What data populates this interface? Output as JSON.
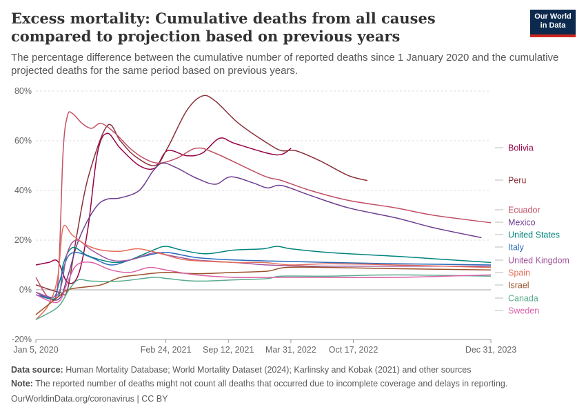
{
  "header": {
    "title": "Excess mortality: Cumulative deaths from all causes compared to projection based on previous years",
    "subtitle": "The percentage difference between the cumulative number of reported deaths since 1 January 2020 and the cumulative projected deaths for the same period based on previous years.",
    "logo_line1": "Our World",
    "logo_line2": "in Data"
  },
  "footer": {
    "source_label": "Data source:",
    "source_text": "Human Mortality Database; World Mortality Dataset (2024); Karlinsky and Kobak (2021) and other sources",
    "note_label": "Note:",
    "note_text": "The reported number of deaths might not count all deaths that occurred due to incomplete coverage and delays in reporting.",
    "url_license": "OurWorldinData.org/coronavirus | CC BY"
  },
  "chart_data": {
    "type": "line",
    "ylim": [
      -20,
      80
    ],
    "xlim": [
      "2020-01-05",
      "2023-12-31"
    ],
    "y_ticks": [
      {
        "value": -20,
        "label": "-20%"
      },
      {
        "value": 0,
        "label": "0%"
      },
      {
        "value": 20,
        "label": "20%"
      },
      {
        "value": 40,
        "label": "40%"
      },
      {
        "value": 60,
        "label": "60%"
      },
      {
        "value": 80,
        "label": "80%"
      }
    ],
    "x_ticks": [
      {
        "date": "2020-01-05",
        "label": "Jan 5, 2020"
      },
      {
        "date": "2021-02-24",
        "label": "Feb 24, 2021"
      },
      {
        "date": "2021-09-12",
        "label": "Sep 12, 2021"
      },
      {
        "date": "2022-03-31",
        "label": "Mar 31, 2022"
      },
      {
        "date": "2022-10-17",
        "label": "Oct 17, 2022"
      },
      {
        "date": "2023-12-31",
        "label": "Dec 31, 2023"
      }
    ],
    "grid": "horizontal dashed",
    "legend": "right, labels at line ends",
    "series": [
      {
        "name": "Bolivia",
        "color": "#970046",
        "points": [
          [
            "2020-01-05",
            10
          ],
          [
            "2020-02-15",
            11
          ],
          [
            "2020-03-15",
            11.5
          ],
          [
            "2020-04-15",
            3
          ],
          [
            "2020-05-20",
            6
          ],
          [
            "2020-06-20",
            25
          ],
          [
            "2020-07-20",
            55
          ],
          [
            "2020-08-20",
            63
          ],
          [
            "2020-10-01",
            57
          ],
          [
            "2020-12-01",
            50
          ],
          [
            "2021-01-20",
            49
          ],
          [
            "2021-03-01",
            56
          ],
          [
            "2021-05-01",
            54
          ],
          [
            "2021-06-20",
            55
          ],
          [
            "2021-08-15",
            61
          ],
          [
            "2021-10-01",
            59
          ],
          [
            "2022-01-15",
            55
          ],
          [
            "2022-03-01",
            54.5
          ],
          [
            "2022-04-01",
            57
          ]
        ]
      },
      {
        "name": "Peru",
        "color": "#883039",
        "points": [
          [
            "2020-01-05",
            2
          ],
          [
            "2020-03-20",
            -1
          ],
          [
            "2020-04-15",
            0
          ],
          [
            "2020-05-15",
            22
          ],
          [
            "2020-06-20",
            45
          ],
          [
            "2020-08-20",
            66
          ],
          [
            "2020-10-01",
            60
          ],
          [
            "2020-11-15",
            54
          ],
          [
            "2021-01-20",
            50
          ],
          [
            "2021-03-01",
            57
          ],
          [
            "2021-05-01",
            72
          ],
          [
            "2021-06-20",
            78
          ],
          [
            "2021-08-01",
            76
          ],
          [
            "2021-10-15",
            67
          ],
          [
            "2022-01-15",
            59
          ],
          [
            "2022-03-01",
            56
          ],
          [
            "2022-04-15",
            56
          ],
          [
            "2022-07-01",
            52
          ],
          [
            "2022-10-01",
            46
          ],
          [
            "2022-12-01",
            44
          ]
        ]
      },
      {
        "name": "Ecuador",
        "color": "#c15065",
        "points": [
          [
            "2020-01-05",
            5
          ],
          [
            "2020-02-15",
            -3
          ],
          [
            "2020-03-15",
            2
          ],
          [
            "2020-04-01",
            55
          ],
          [
            "2020-04-15",
            70
          ],
          [
            "2020-05-01",
            71
          ],
          [
            "2020-06-01",
            67
          ],
          [
            "2020-07-01",
            65
          ],
          [
            "2020-08-01",
            67
          ],
          [
            "2020-09-15",
            63
          ],
          [
            "2020-11-01",
            57
          ],
          [
            "2020-12-15",
            53
          ],
          [
            "2021-02-01",
            51
          ],
          [
            "2021-04-01",
            53
          ],
          [
            "2021-06-01",
            57
          ],
          [
            "2021-08-01",
            55
          ],
          [
            "2022-01-01",
            46
          ],
          [
            "2022-03-01",
            44
          ],
          [
            "2022-06-01",
            40
          ],
          [
            "2022-10-01",
            36
          ],
          [
            "2023-03-01",
            33
          ],
          [
            "2023-07-01",
            30
          ],
          [
            "2023-12-31",
            27
          ]
        ]
      },
      {
        "name": "Mexico",
        "color": "#6d3e91",
        "points": [
          [
            "2020-01-05",
            -1
          ],
          [
            "2020-03-15",
            -4
          ],
          [
            "2020-04-15",
            5
          ],
          [
            "2020-05-15",
            18
          ],
          [
            "2020-06-15",
            27
          ],
          [
            "2020-07-20",
            34
          ],
          [
            "2020-08-20",
            36.5
          ],
          [
            "2020-10-01",
            37
          ],
          [
            "2020-12-01",
            40
          ],
          [
            "2021-01-15",
            48
          ],
          [
            "2021-02-15",
            51
          ],
          [
            "2021-04-01",
            49
          ],
          [
            "2021-06-01",
            45
          ],
          [
            "2021-08-01",
            42.5
          ],
          [
            "2021-09-20",
            45.5
          ],
          [
            "2021-12-01",
            43
          ],
          [
            "2022-01-15",
            41
          ],
          [
            "2022-03-01",
            42
          ],
          [
            "2022-06-01",
            38
          ],
          [
            "2022-10-01",
            33
          ],
          [
            "2023-03-01",
            29
          ],
          [
            "2023-07-01",
            25
          ],
          [
            "2023-12-01",
            21
          ]
        ]
      },
      {
        "name": "United States",
        "color": "#00847e",
        "points": [
          [
            "2020-01-05",
            -2
          ],
          [
            "2020-03-15",
            -3
          ],
          [
            "2020-04-01",
            10
          ],
          [
            "2020-05-01",
            17
          ],
          [
            "2020-06-15",
            14
          ],
          [
            "2020-08-01",
            12
          ],
          [
            "2020-09-15",
            11
          ],
          [
            "2020-11-01",
            12
          ],
          [
            "2021-01-15",
            16
          ],
          [
            "2021-02-24",
            17.5
          ],
          [
            "2021-04-15",
            16
          ],
          [
            "2021-07-01",
            14.5
          ],
          [
            "2021-10-01",
            16
          ],
          [
            "2022-01-01",
            16.5
          ],
          [
            "2022-02-15",
            17.5
          ],
          [
            "2022-04-01",
            16.5
          ],
          [
            "2022-08-01",
            15
          ],
          [
            "2023-03-01",
            13.5
          ],
          [
            "2023-07-01",
            12.5
          ],
          [
            "2023-12-31",
            11
          ]
        ]
      },
      {
        "name": "Italy",
        "color": "#286bbb",
        "points": [
          [
            "2020-01-05",
            -2
          ],
          [
            "2020-03-01",
            -3
          ],
          [
            "2020-03-20",
            3
          ],
          [
            "2020-04-15",
            13
          ],
          [
            "2020-05-15",
            15
          ],
          [
            "2020-07-01",
            13
          ],
          [
            "2020-09-01",
            10
          ],
          [
            "2020-11-01",
            12
          ],
          [
            "2021-01-01",
            14
          ],
          [
            "2021-03-01",
            15
          ],
          [
            "2021-06-01",
            13
          ],
          [
            "2021-10-01",
            12
          ],
          [
            "2022-03-01",
            11.5
          ],
          [
            "2022-08-01",
            11
          ],
          [
            "2023-03-01",
            10.5
          ],
          [
            "2023-12-31",
            10
          ]
        ]
      },
      {
        "name": "United Kingdom",
        "color": "#a2559c",
        "points": [
          [
            "2020-01-05",
            -1
          ],
          [
            "2020-03-15",
            -2
          ],
          [
            "2020-04-15",
            15
          ],
          [
            "2020-05-15",
            20
          ],
          [
            "2020-07-01",
            16
          ],
          [
            "2020-09-01",
            12
          ],
          [
            "2020-11-01",
            12
          ],
          [
            "2021-01-20",
            15
          ],
          [
            "2021-03-01",
            14
          ],
          [
            "2021-06-01",
            12
          ],
          [
            "2021-10-01",
            11
          ],
          [
            "2022-01-15",
            10
          ],
          [
            "2022-06-01",
            9.5
          ],
          [
            "2023-01-01",
            9.5
          ],
          [
            "2023-12-31",
            9.5
          ]
        ]
      },
      {
        "name": "Spain",
        "color": "#e56e5a",
        "points": [
          [
            "2020-01-05",
            -12
          ],
          [
            "2020-02-15",
            -6
          ],
          [
            "2020-03-15",
            5
          ],
          [
            "2020-04-01",
            25
          ],
          [
            "2020-05-01",
            22
          ],
          [
            "2020-06-15",
            18
          ],
          [
            "2020-08-01",
            16
          ],
          [
            "2020-10-01",
            15.5
          ],
          [
            "2020-12-01",
            16.5
          ],
          [
            "2021-02-24",
            14
          ],
          [
            "2021-05-01",
            12
          ],
          [
            "2021-10-01",
            11
          ],
          [
            "2022-01-01",
            11
          ],
          [
            "2022-04-01",
            10
          ],
          [
            "2022-08-01",
            10.5
          ],
          [
            "2023-03-01",
            10
          ],
          [
            "2023-12-31",
            9
          ]
        ]
      },
      {
        "name": "Israel",
        "color": "#9a5129",
        "points": [
          [
            "2020-01-05",
            -10
          ],
          [
            "2020-03-15",
            -3
          ],
          [
            "2020-04-15",
            0
          ],
          [
            "2020-06-01",
            1
          ],
          [
            "2020-08-01",
            2
          ],
          [
            "2020-10-01",
            5
          ],
          [
            "2020-12-01",
            6
          ],
          [
            "2021-02-24",
            7
          ],
          [
            "2021-06-01",
            6.5
          ],
          [
            "2021-10-01",
            7
          ],
          [
            "2022-01-15",
            7.5
          ],
          [
            "2022-03-15",
            9
          ],
          [
            "2022-08-01",
            9
          ],
          [
            "2023-03-01",
            8.5
          ],
          [
            "2023-12-31",
            8
          ]
        ]
      },
      {
        "name": "Canada",
        "color": "#58ac8c",
        "points": [
          [
            "2020-01-05",
            -12
          ],
          [
            "2020-03-15",
            -7
          ],
          [
            "2020-04-20",
            0
          ],
          [
            "2020-05-20",
            4
          ],
          [
            "2020-07-01",
            3.5
          ],
          [
            "2020-10-01",
            3.5
          ],
          [
            "2021-01-15",
            5
          ],
          [
            "2021-03-01",
            4.5
          ],
          [
            "2021-06-01",
            3.5
          ],
          [
            "2021-10-01",
            4
          ],
          [
            "2022-01-15",
            4.5
          ],
          [
            "2022-03-01",
            5.5
          ],
          [
            "2022-08-01",
            5.5
          ],
          [
            "2023-03-01",
            6
          ],
          [
            "2023-12-31",
            5.5
          ]
        ]
      },
      {
        "name": "Sweden",
        "color": "#dc61a8",
        "points": [
          [
            "2020-01-05",
            -2
          ],
          [
            "2020-03-15",
            -5
          ],
          [
            "2020-04-15",
            3
          ],
          [
            "2020-05-15",
            10
          ],
          [
            "2020-07-01",
            11
          ],
          [
            "2020-09-01",
            8
          ],
          [
            "2020-11-01",
            7
          ],
          [
            "2021-01-01",
            9
          ],
          [
            "2021-02-24",
            8
          ],
          [
            "2021-06-01",
            6
          ],
          [
            "2021-10-01",
            5
          ],
          [
            "2022-01-15",
            5
          ],
          [
            "2022-06-01",
            5
          ],
          [
            "2023-03-01",
            5
          ],
          [
            "2023-12-31",
            6
          ]
        ]
      }
    ],
    "labels": [
      {
        "text": "Bolivia",
        "color": "#970046"
      },
      {
        "text": "Peru",
        "color": "#883039"
      },
      {
        "text": "Ecuador",
        "color": "#c15065"
      },
      {
        "text": "Mexico",
        "color": "#6d3e91"
      },
      {
        "text": "United States",
        "color": "#00847e"
      },
      {
        "text": "Italy",
        "color": "#286bbb"
      },
      {
        "text": "United Kingdom",
        "color": "#a2559c"
      },
      {
        "text": "Spain",
        "color": "#e56e5a"
      },
      {
        "text": "Israel",
        "color": "#9a5129"
      },
      {
        "text": "Canada",
        "color": "#58ac8c"
      },
      {
        "text": "Sweden",
        "color": "#dc61a8"
      }
    ]
  }
}
